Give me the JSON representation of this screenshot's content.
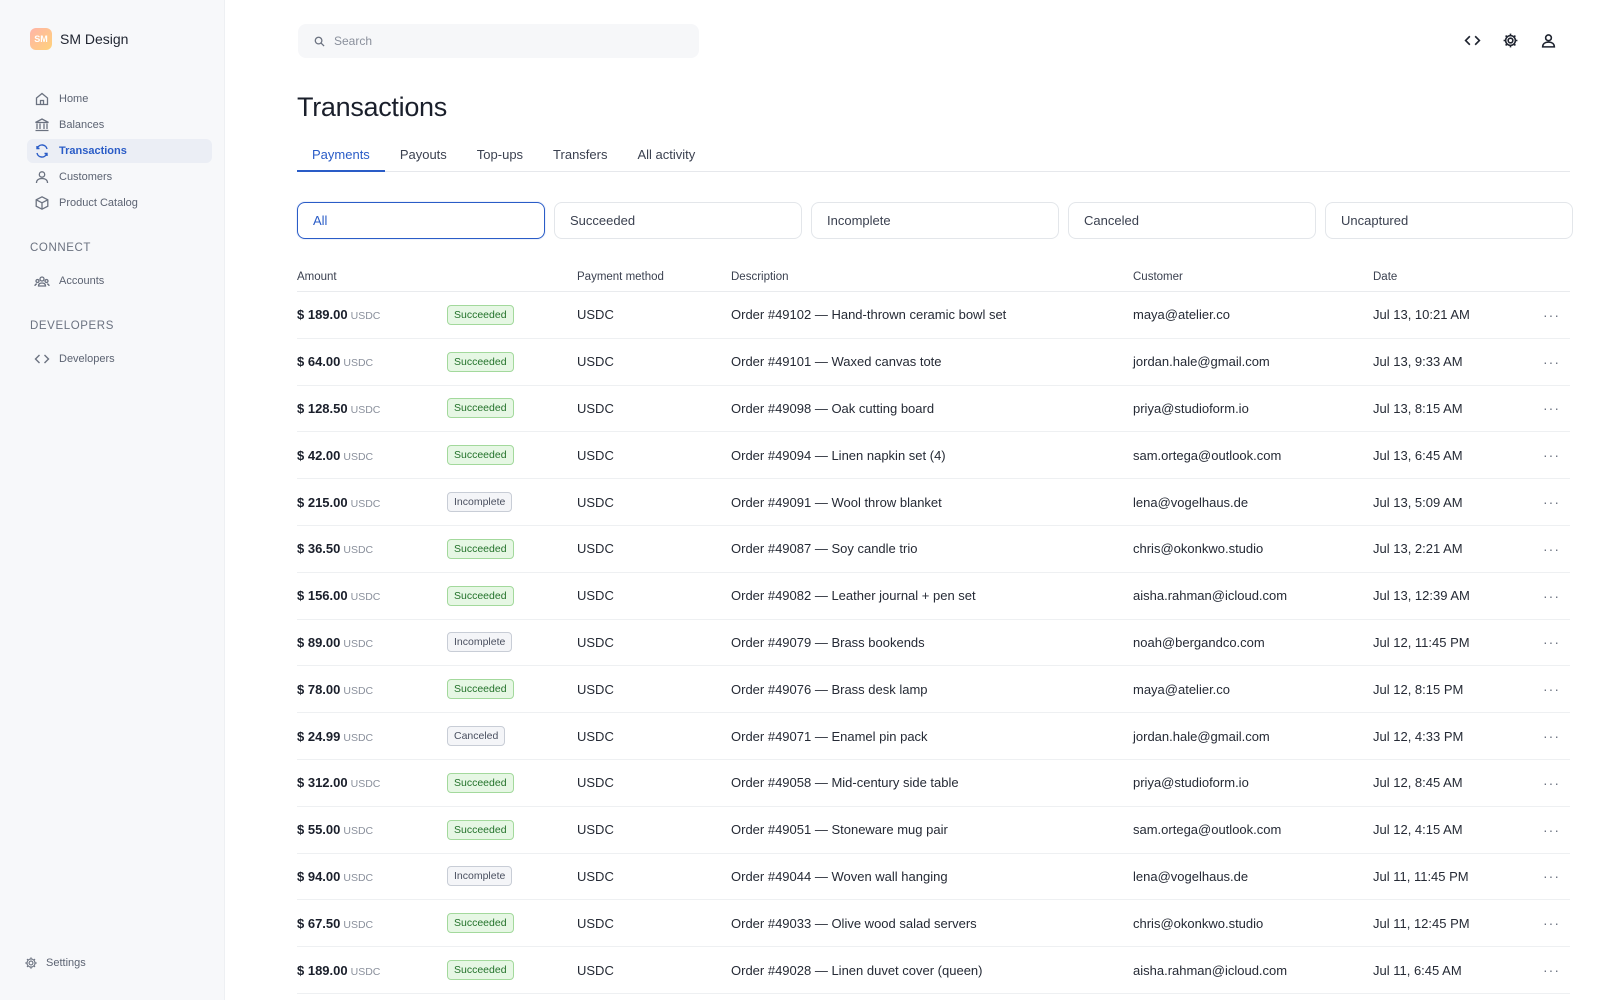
{
  "app": {
    "brand_name": "SM Design",
    "logo_initials": "SM",
    "logo_colors": [
      "#ffb4a8",
      "#ffd27a"
    ]
  },
  "accent_color": "#2a5cc7",
  "sidebar": {
    "items": [
      {
        "label": "Home",
        "icon": "home-icon"
      },
      {
        "label": "Balances",
        "icon": "bank-icon"
      },
      {
        "label": "Transactions",
        "icon": "refresh-icon",
        "active": true
      },
      {
        "label": "Customers",
        "icon": "user-icon"
      },
      {
        "label": "Product Catalog",
        "icon": "box-icon"
      }
    ],
    "connect_title": "CONNECT",
    "connect_items": [
      {
        "label": "Accounts",
        "icon": "users-icon"
      }
    ],
    "developers_title": "DEVELOPERS",
    "developers_items": [
      {
        "label": "Developers",
        "icon": "code-icon"
      }
    ],
    "settings_label": "Settings"
  },
  "search": {
    "placeholder": "Search",
    "value": ""
  },
  "top_icons": [
    "code-icon",
    "gear-icon",
    "user-icon"
  ],
  "page": {
    "title": "Transactions"
  },
  "tabs": [
    {
      "label": "Payments",
      "active": true
    },
    {
      "label": "Payouts"
    },
    {
      "label": "Top-ups"
    },
    {
      "label": "Transfers"
    },
    {
      "label": "All activity"
    }
  ],
  "filters": [
    {
      "label": "All",
      "active": true
    },
    {
      "label": "Succeeded"
    },
    {
      "label": "Incomplete"
    },
    {
      "label": "Canceled"
    },
    {
      "label": "Uncaptured"
    }
  ],
  "table": {
    "headers": {
      "amount": "Amount",
      "method": "Payment method",
      "description": "Description",
      "customer": "Customer",
      "date": "Date"
    },
    "rows": [
      {
        "amount": "$ 189.00",
        "currency": "USDC",
        "status": "Succeeded",
        "method": "USDC",
        "description": "Order #49102 — Hand-thrown ceramic bowl set",
        "customer": "maya@atelier.co",
        "date": "Jul 13, 10:21 AM"
      },
      {
        "amount": "$ 64.00",
        "currency": "USDC",
        "status": "Succeeded",
        "method": "USDC",
        "description": "Order #49101 — Waxed canvas tote",
        "customer": "jordan.hale@gmail.com",
        "date": "Jul 13, 9:33 AM"
      },
      {
        "amount": "$ 128.50",
        "currency": "USDC",
        "status": "Succeeded",
        "method": "USDC",
        "description": "Order #49098 — Oak cutting board",
        "customer": "priya@studioform.io",
        "date": "Jul 13, 8:15 AM"
      },
      {
        "amount": "$ 42.00",
        "currency": "USDC",
        "status": "Succeeded",
        "method": "USDC",
        "description": "Order #49094 — Linen napkin set (4)",
        "customer": "sam.ortega@outlook.com",
        "date": "Jul 13, 6:45 AM"
      },
      {
        "amount": "$ 215.00",
        "currency": "USDC",
        "status": "Incomplete",
        "method": "USDC",
        "description": "Order #49091 — Wool throw blanket",
        "customer": "lena@vogelhaus.de",
        "date": "Jul 13, 5:09 AM"
      },
      {
        "amount": "$ 36.50",
        "currency": "USDC",
        "status": "Succeeded",
        "method": "USDC",
        "description": "Order #49087 — Soy candle trio",
        "customer": "chris@okonkwo.studio",
        "date": "Jul 13, 2:21 AM"
      },
      {
        "amount": "$ 156.00",
        "currency": "USDC",
        "status": "Succeeded",
        "method": "USDC",
        "description": "Order #49082 — Leather journal + pen set",
        "customer": "aisha.rahman@icloud.com",
        "date": "Jul 13, 12:39 AM"
      },
      {
        "amount": "$ 89.00",
        "currency": "USDC",
        "status": "Incomplete",
        "method": "USDC",
        "description": "Order #49079 — Brass bookends",
        "customer": "noah@bergandco.com",
        "date": "Jul 12, 11:45 PM"
      },
      {
        "amount": "$ 78.00",
        "currency": "USDC",
        "status": "Succeeded",
        "method": "USDC",
        "description": "Order #49076 — Brass desk lamp",
        "customer": "maya@atelier.co",
        "date": "Jul 12, 8:15 PM"
      },
      {
        "amount": "$ 24.99",
        "currency": "USDC",
        "status": "Canceled",
        "method": "USDC",
        "description": "Order #49071 — Enamel pin pack",
        "customer": "jordan.hale@gmail.com",
        "date": "Jul 12, 4:33 PM"
      },
      {
        "amount": "$ 312.00",
        "currency": "USDC",
        "status": "Succeeded",
        "method": "USDC",
        "description": "Order #49058 — Mid-century side table",
        "customer": "priya@studioform.io",
        "date": "Jul 12, 8:45 AM"
      },
      {
        "amount": "$ 55.00",
        "currency": "USDC",
        "status": "Succeeded",
        "method": "USDC",
        "description": "Order #49051 — Stoneware mug pair",
        "customer": "sam.ortega@outlook.com",
        "date": "Jul 12, 4:15 AM"
      },
      {
        "amount": "$ 94.00",
        "currency": "USDC",
        "status": "Incomplete",
        "method": "USDC",
        "description": "Order #49044 — Woven wall hanging",
        "customer": "lena@vogelhaus.de",
        "date": "Jul 11, 11:45 PM"
      },
      {
        "amount": "$ 67.50",
        "currency": "USDC",
        "status": "Succeeded",
        "method": "USDC",
        "description": "Order #49033 — Olive wood salad servers",
        "customer": "chris@okonkwo.studio",
        "date": "Jul 11, 12:45 PM"
      },
      {
        "amount": "$ 189.00",
        "currency": "USDC",
        "status": "Succeeded",
        "method": "USDC",
        "description": "Order #49028 — Linen duvet cover (queen)",
        "customer": "aisha.rahman@icloud.com",
        "date": "Jul 11, 6:45 AM"
      }
    ]
  }
}
